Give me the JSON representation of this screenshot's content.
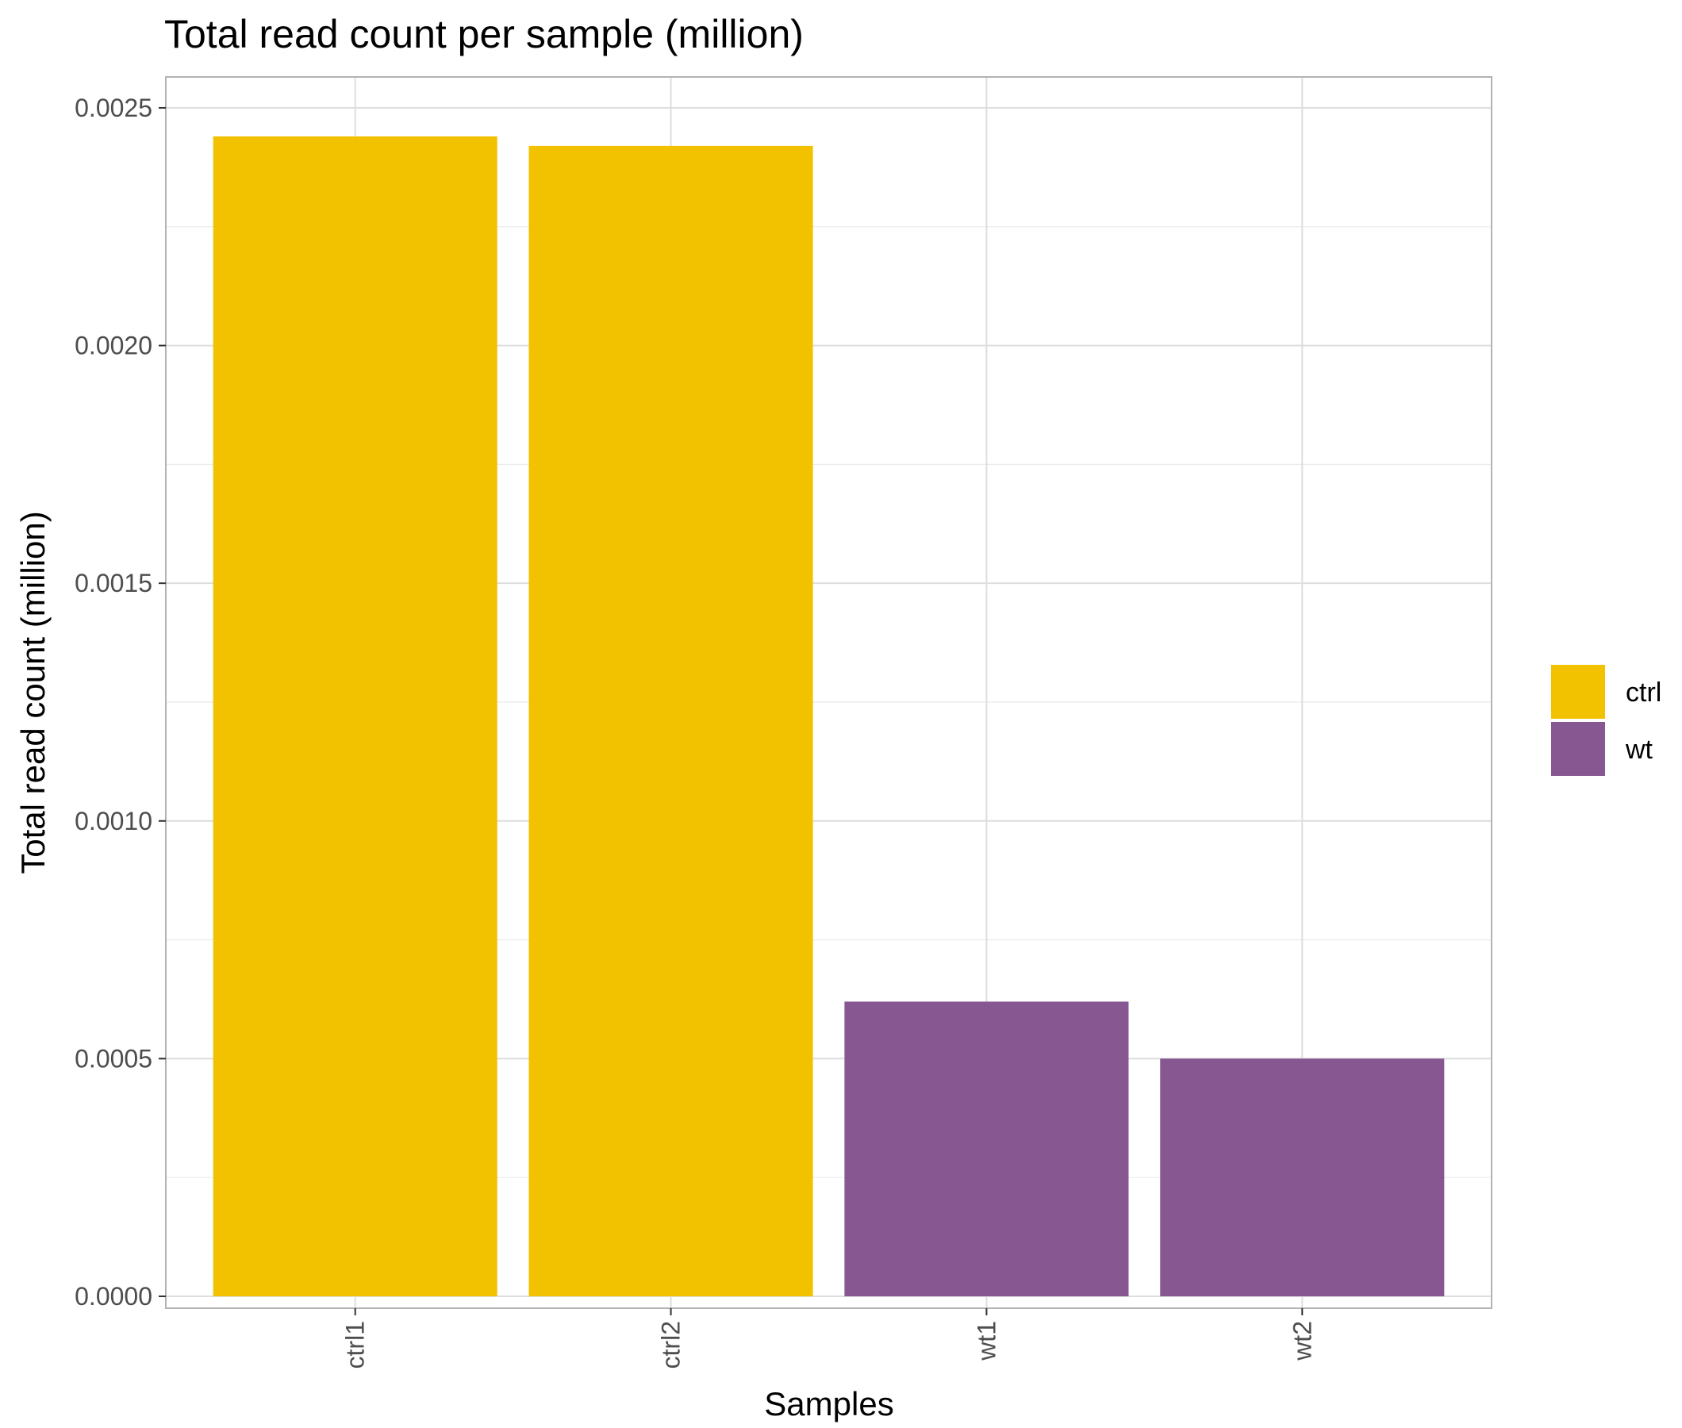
{
  "chart_data": {
    "type": "bar",
    "title": "Total read count per sample (million)",
    "xlabel": "Samples",
    "ylabel": "Total read count (million)",
    "categories": [
      "ctrl1",
      "ctrl2",
      "wt1",
      "wt2"
    ],
    "values": [
      0.00244,
      0.00242,
      0.00062,
      0.0005
    ],
    "groups": [
      "ctrl",
      "ctrl",
      "wt",
      "wt"
    ],
    "ylim": [
      -2.5e-05,
      0.002565
    ],
    "yticks": [
      0.0,
      0.0005,
      0.001,
      0.0015,
      0.002,
      0.0025
    ],
    "ytick_labels": [
      "0.0000",
      "0.0005",
      "0.0010",
      "0.0015",
      "0.0020",
      "0.0025"
    ],
    "grid": true,
    "legend": {
      "position": "right",
      "entries": [
        {
          "label": "ctrl",
          "color": "#F2C200"
        },
        {
          "label": "wt",
          "color": "#875792"
        }
      ]
    },
    "colors": {
      "ctrl": "#F2C200",
      "wt": "#875792"
    }
  }
}
